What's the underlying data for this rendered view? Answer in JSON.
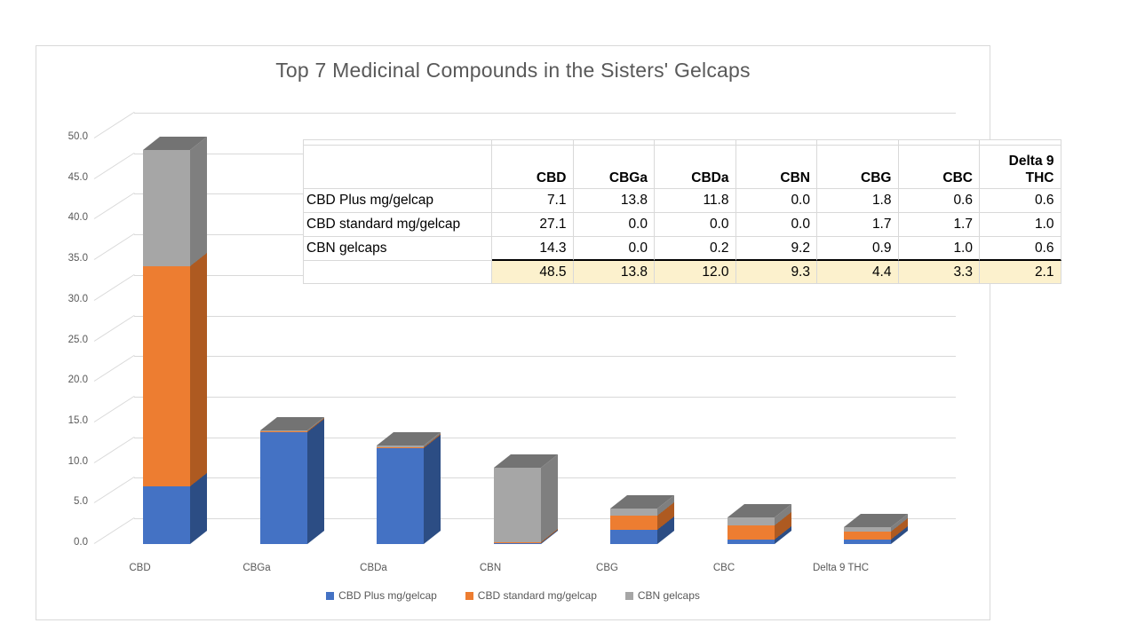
{
  "title": "Top 7 Medicinal Compounds in the Sisters' Gelcaps",
  "chart_data": {
    "type": "bar",
    "subtype": "3d-stacked-column",
    "title": "Top 7 Medicinal Compounds in the Sisters' Gelcaps",
    "categories": [
      "CBD",
      "CBGa",
      "CBDa",
      "CBN",
      "CBG",
      "CBC",
      "Delta 9 THC"
    ],
    "series": [
      {
        "name": "CBD Plus mg/gelcap",
        "color": "#4472c4",
        "side_color": "#2c4d84",
        "values": [
          7.1,
          13.8,
          11.8,
          0.0,
          1.8,
          0.6,
          0.6
        ]
      },
      {
        "name": "CBD standard mg/gelcap",
        "color": "#ed7d31",
        "side_color": "#ae5a21",
        "values": [
          27.1,
          0.0,
          0.0,
          0.0,
          1.7,
          1.7,
          1.0
        ]
      },
      {
        "name": "CBN gelcaps",
        "color": "#a6a6a6",
        "side_color": "#7f7f7f",
        "values": [
          14.3,
          0.0,
          0.2,
          9.2,
          0.9,
          1.0,
          0.6
        ]
      }
    ],
    "totals": [
      48.5,
      13.8,
      12.0,
      9.3,
      4.4,
      3.3,
      2.1
    ],
    "ylim": [
      0,
      50
    ],
    "ytick_step": 5,
    "ytick_labels": [
      "0.0",
      "5.0",
      "10.0",
      "15.0",
      "20.0",
      "25.0",
      "30.0",
      "35.0",
      "40.0",
      "45.0",
      "50.0"
    ],
    "grid": true,
    "legend_position": "bottom",
    "top_face_color": "#737373",
    "grid_color": "#d9d9d9",
    "axis_text_color": "#595959"
  },
  "table": {
    "col_headers": [
      "CBD",
      "CBGa",
      "CBDa",
      "CBN",
      "CBG",
      "CBC",
      "Delta 9 THC"
    ],
    "rows": [
      {
        "label": "CBD Plus mg/gelcap",
        "values": [
          7.1,
          13.8,
          11.8,
          0.0,
          1.8,
          0.6,
          0.6
        ]
      },
      {
        "label": "CBD standard mg/gelcap",
        "values": [
          27.1,
          0.0,
          0.0,
          0.0,
          1.7,
          1.7,
          1.0
        ]
      },
      {
        "label": "CBN gelcaps",
        "values": [
          14.3,
          0.0,
          0.2,
          9.2,
          0.9,
          1.0,
          0.6
        ]
      }
    ],
    "totals_row": {
      "label": "",
      "values": [
        48.5,
        13.8,
        12.0,
        9.3,
        4.4,
        3.3,
        2.1
      ]
    },
    "totals_bg": "#fcf1cd"
  },
  "legend": {
    "items": [
      "CBD Plus mg/gelcap",
      "CBD standard mg/gelcap",
      "CBN gelcaps"
    ]
  }
}
